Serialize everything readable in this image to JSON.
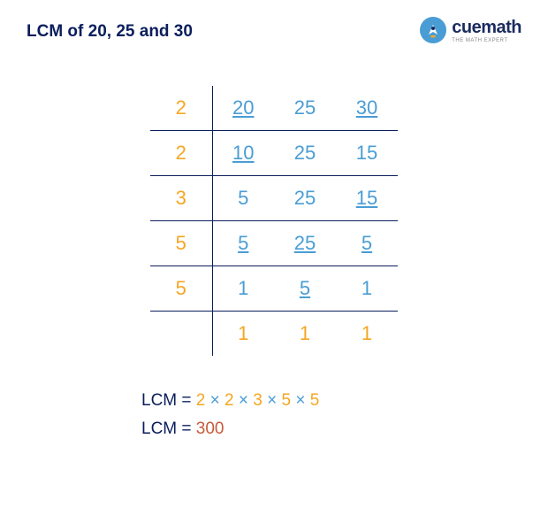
{
  "title": "LCM of 20, 25 and 30",
  "logo": {
    "text": "cuemath",
    "tagline": "THE MATH EXPERT"
  },
  "table": {
    "rows": [
      {
        "divisor": "2",
        "cells": [
          {
            "v": "20",
            "d": true
          },
          {
            "v": "25",
            "d": false
          },
          {
            "v": "30",
            "d": true
          }
        ]
      },
      {
        "divisor": "2",
        "cells": [
          {
            "v": "10",
            "d": true
          },
          {
            "v": "25",
            "d": false
          },
          {
            "v": "15",
            "d": false
          }
        ]
      },
      {
        "divisor": "3",
        "cells": [
          {
            "v": "5",
            "d": false
          },
          {
            "v": "25",
            "d": false
          },
          {
            "v": "15",
            "d": true
          }
        ]
      },
      {
        "divisor": "5",
        "cells": [
          {
            "v": "5",
            "d": true
          },
          {
            "v": "25",
            "d": true
          },
          {
            "v": "5",
            "d": true
          }
        ]
      },
      {
        "divisor": "5",
        "cells": [
          {
            "v": "1",
            "d": false
          },
          {
            "v": "5",
            "d": true
          },
          {
            "v": "1",
            "d": false
          }
        ]
      },
      {
        "divisor": "",
        "cells": [
          {
            "v": "1",
            "d": false,
            "one": true
          },
          {
            "v": "1",
            "d": false,
            "one": true
          },
          {
            "v": "1",
            "d": false,
            "one": true
          }
        ]
      }
    ]
  },
  "result": {
    "label": "LCM",
    "eq": "=",
    "factors": [
      "2",
      "2",
      "3",
      "5",
      "5"
    ],
    "times": "×",
    "answer": "300"
  },
  "colors": {
    "title": "#0a1e5c",
    "orange": "#f5a623",
    "blue": "#4a9dd4",
    "answer": "#c85a3a",
    "border": "#0a1e5c"
  }
}
